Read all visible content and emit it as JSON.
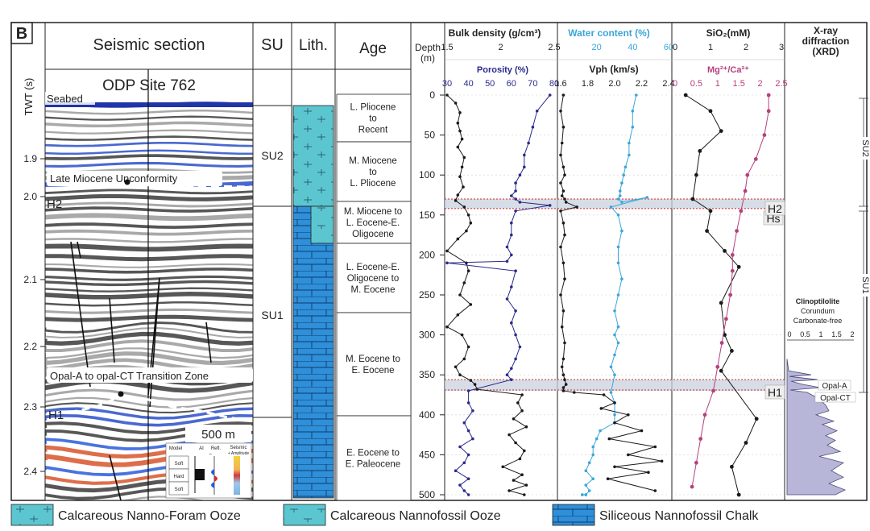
{
  "panel_label": "B",
  "headers": {
    "seismic": "Seismic section",
    "su": "SU",
    "lith": "Lith.",
    "age": "Age",
    "depth": "Depth",
    "depth_unit": "(m)",
    "twt_axis": "TWT (s)",
    "xrd_line1": "X-ray",
    "xrd_line2": "diffraction",
    "xrd_line3": "(XRD)"
  },
  "seismic": {
    "site": "ODP Site 762",
    "seabed": "Seabed",
    "late_miocene": "Late Miocene Unconformity",
    "opal_transition": "Opal-A to opal-CT Transition Zone",
    "h2": "H2",
    "h1": "H1",
    "scale_bar": "500 m",
    "inset": {
      "model": "Model",
      "ai": "AI",
      "refl": "Refl.",
      "seismic_amp": "Seismic",
      "amp": "+ Amplitude",
      "soft1": "Soft",
      "hard": "Hard",
      "soft2": "Soft",
      "minus": "−"
    },
    "twt_ticks": [
      "1.9",
      "2.0",
      "2.1",
      "2.2",
      "2.3",
      "2.4"
    ]
  },
  "units": {
    "su2": "SU2",
    "su1": "SU1"
  },
  "ages": [
    "L. Pliocene to Recent",
    "M. Miocene to L. Pliocene",
    "M. Miocene to L. Eocene-E. Oligocene",
    "L. Eocene-E. Oligocene to M. Eocene",
    "M. Eocene to E. Eocene",
    "E. Eocene to E. Paleocene"
  ],
  "ages_lines": [
    [
      "L. Pliocene",
      "to",
      "Recent"
    ],
    [
      "M. Miocene",
      "to",
      "L. Pliocene"
    ],
    [
      "M. Miocene to",
      "L. Eocene-E.",
      "Oligocene"
    ],
    [
      "L. Eocene-E.",
      "Oligocene to",
      "M. Eocene"
    ],
    [
      "M. Eocene to",
      "E. Eocene"
    ],
    [
      "E.  Eocene to",
      "E. Paleocene"
    ]
  ],
  "depth_ticks": [
    "0",
    "50",
    "100",
    "150",
    "200",
    "250",
    "300",
    "350",
    "400",
    "450",
    "500"
  ],
  "markers": {
    "hs": "Hs",
    "h2": "H2",
    "h1": "H1",
    "su2": "SU2",
    "su1": "SU1",
    "opal_a": "Opal-A",
    "opal_ct": "Opal-CT"
  },
  "xrd_legend": [
    "Clinoptilolite",
    "Corundum",
    "Carbonate-free"
  ],
  "xrd_ticks": [
    "0",
    "0.5",
    "1",
    "1.5",
    "2"
  ],
  "legend": [
    "Calcareous Nanno-Foram Ooze",
    "Calcareous Nannofossil  Ooze",
    "Siliceous Nannofossil Chalk"
  ],
  "colors": {
    "porosity": "#2b2a8c",
    "water": "#3aa6d8",
    "mgca": "#b5407e",
    "black": "#1a1a1a",
    "lith": "#2f8fd8",
    "lith_light": "#5cc6d0",
    "shade": "#c8d2de",
    "redline": "#d62b2b"
  },
  "chart_data": [
    {
      "type": "line",
      "title": "Bulk density (g/cm³)",
      "xlabel": "Bulk density (g/cm³)",
      "xlim": [
        1.5,
        2.5
      ],
      "xticks": [
        "1.5",
        "2",
        "2.5"
      ],
      "ylabel": "Depth (m)",
      "ylim": [
        0,
        500
      ],
      "series": [
        {
          "name": "Bulk density",
          "color": "#1a1a1a",
          "x": [
            1.5,
            1.58,
            1.62,
            1.6,
            1.62,
            1.64,
            1.6,
            1.66,
            1.64,
            1.62,
            1.65,
            1.6,
            1.58,
            1.66,
            1.7,
            1.72,
            1.68,
            1.6,
            1.5,
            1.68,
            1.7,
            1.66,
            1.62,
            1.72,
            1.6,
            1.5,
            1.64,
            1.7,
            1.66,
            1.58,
            1.62,
            1.72,
            1.76,
            1.78,
            2.2,
            2.16,
            2.2,
            2.12,
            2.24,
            2.08,
            2.14,
            2.22,
            2.18,
            2.02,
            2.2,
            2.12,
            2.24,
            2.08,
            2.22
          ],
          "y": [
            0,
            10,
            22,
            35,
            45,
            55,
            65,
            78,
            90,
            102,
            115,
            125,
            132,
            140,
            150,
            160,
            170,
            180,
            195,
            210,
            220,
            235,
            250,
            262,
            275,
            290,
            300,
            315,
            330,
            340,
            350,
            357,
            362,
            368,
            375,
            385,
            395,
            405,
            415,
            425,
            435,
            445,
            455,
            465,
            475,
            482,
            488,
            495,
            500
          ]
        }
      ]
    },
    {
      "type": "line",
      "title": "Porosity (%)",
      "xlabel": "Porosity (%)",
      "xlim": [
        30,
        80
      ],
      "xticks": [
        "30",
        "40",
        "50",
        "60",
        "70",
        "80"
      ],
      "ylim": [
        0,
        500
      ],
      "series": [
        {
          "name": "Porosity",
          "color": "#2b2a8c",
          "x": [
            78,
            72,
            70,
            68,
            66,
            66,
            64,
            62,
            62,
            60,
            62,
            64,
            78,
            62,
            60,
            60,
            58,
            60,
            58,
            30,
            62,
            60,
            58,
            62,
            60,
            62,
            64,
            62,
            60,
            58,
            60,
            40,
            40,
            42,
            38,
            40,
            42,
            36,
            40,
            38,
            34,
            40,
            36,
            38,
            40
          ],
          "y": [
            0,
            20,
            40,
            60,
            75,
            90,
            100,
            110,
            120,
            126,
            130,
            134,
            138,
            145,
            160,
            175,
            190,
            200,
            208,
            210,
            220,
            240,
            255,
            270,
            285,
            300,
            315,
            330,
            342,
            350,
            356,
            370,
            385,
            395,
            410,
            420,
            430,
            440,
            450,
            460,
            470,
            480,
            488,
            495,
            500
          ]
        }
      ]
    },
    {
      "type": "line",
      "title": "Water content (%)",
      "xlabel": "Water content (%)",
      "xlim": [
        0,
        60
      ],
      "xticks": [
        "20",
        "40",
        "60"
      ],
      "ylim": [
        0,
        500
      ],
      "series": [
        {
          "name": "Water content",
          "color": "#3aa6d8",
          "x": [
            42,
            40,
            40,
            38,
            38,
            36,
            35,
            34,
            33,
            33,
            32,
            34,
            48,
            28,
            32,
            34,
            32,
            32,
            34,
            32,
            30,
            32,
            30,
            32,
            30,
            28,
            30,
            28,
            30,
            30,
            30,
            22,
            20,
            18,
            18,
            16,
            14,
            18,
            14,
            16,
            14,
            12,
            14,
            12,
            14
          ],
          "y": [
            0,
            20,
            40,
            60,
            75,
            90,
            100,
            110,
            120,
            126,
            130,
            134,
            128,
            140,
            150,
            170,
            190,
            210,
            230,
            250,
            270,
            290,
            300,
            310,
            325,
            340,
            350,
            372,
            385,
            400,
            410,
            420,
            430,
            440,
            450,
            460,
            470,
            480,
            488,
            495,
            500,
            500,
            500,
            500,
            500
          ]
        }
      ]
    },
    {
      "type": "line",
      "title": "Vph (km/s)",
      "xlabel": "Vph (km/s)",
      "xlim": [
        1.6,
        2.4
      ],
      "xticks": [
        "1.6",
        "1.8",
        "2.0",
        "2.2",
        "2.4"
      ],
      "ylim": [
        0,
        500
      ],
      "series": [
        {
          "name": "Vph",
          "color": "#1a1a1a",
          "x": [
            1.62,
            1.6,
            1.62,
            1.61,
            1.6,
            1.62,
            1.63,
            1.6,
            1.62,
            1.61,
            1.63,
            1.64,
            1.72,
            1.6,
            1.62,
            1.63,
            1.6,
            1.62,
            1.63,
            1.6,
            1.62,
            1.61,
            1.63,
            1.62,
            1.61,
            1.62,
            1.63,
            1.64,
            1.62,
            1.62,
            1.7,
            1.92,
            2.0,
            1.9,
            2.1,
            2.0,
            2.2,
            1.96,
            2.3,
            2.1,
            2.35,
            2.0,
            2.25,
            1.95,
            2.3
          ],
          "y": [
            0,
            20,
            40,
            60,
            75,
            90,
            100,
            110,
            120,
            126,
            130,
            134,
            140,
            145,
            160,
            175,
            190,
            210,
            230,
            250,
            270,
            290,
            310,
            330,
            340,
            350,
            356,
            362,
            366,
            370,
            372,
            375,
            385,
            392,
            400,
            410,
            420,
            430,
            440,
            450,
            458,
            465,
            472,
            480,
            495
          ]
        }
      ]
    },
    {
      "type": "line",
      "title": "SiO₂(mM)",
      "xlabel": "SiO₂(mM)",
      "xlim": [
        0,
        3
      ],
      "xticks": [
        "0",
        "1",
        "2",
        "3"
      ],
      "ylim": [
        0,
        500
      ],
      "series": [
        {
          "name": "SiO₂",
          "color": "#1a1a1a",
          "x": [
            0.3,
            1.0,
            1.3,
            0.7,
            0.6,
            0.5,
            1.0,
            0.9,
            1.4,
            1.8,
            1.3,
            1.4,
            1.6,
            1.3,
            2.3,
            2.0,
            1.6,
            1.8
          ],
          "y": [
            0,
            20,
            45,
            70,
            100,
            130,
            145,
            170,
            195,
            215,
            260,
            300,
            320,
            345,
            405,
            435,
            465,
            500
          ]
        }
      ]
    },
    {
      "type": "line",
      "title": "Mg²⁺/Ca²⁺",
      "xlabel": "Mg²⁺/Ca²⁺",
      "xlim": [
        0,
        2.5
      ],
      "xticks": [
        "0",
        "0.5",
        "1",
        "1.5",
        "2",
        "2.5"
      ],
      "ylim": [
        0,
        500
      ],
      "series": [
        {
          "name": "Mg/Ca",
          "color": "#b5407e",
          "x": [
            2.2,
            2.2,
            2.1,
            1.9,
            1.7,
            1.65,
            1.55,
            1.45,
            1.35,
            1.35,
            1.3,
            1.2,
            1.1,
            1.0,
            0.9,
            0.7,
            0.6,
            0.5,
            0.4
          ],
          "y": [
            0,
            20,
            50,
            80,
            100,
            120,
            145,
            170,
            200,
            220,
            250,
            280,
            310,
            340,
            370,
            400,
            430,
            460,
            490
          ]
        }
      ]
    }
  ]
}
